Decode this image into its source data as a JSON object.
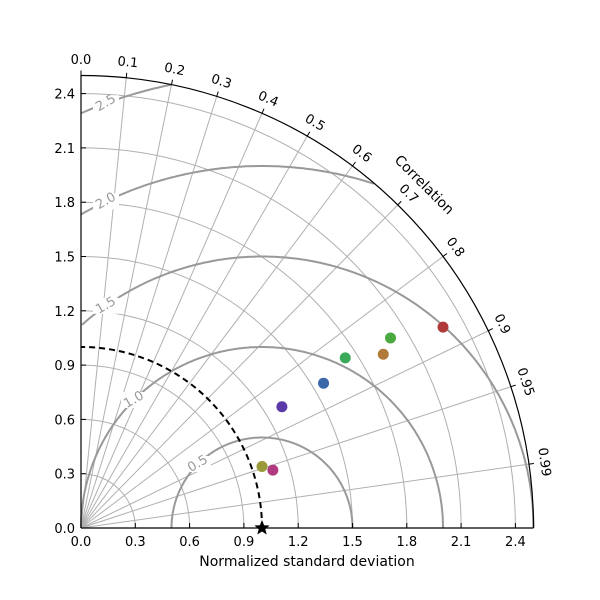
{
  "chart_data": {
    "type": "scatter",
    "title": "",
    "xlabel": "Normalized standard deviation",
    "ylabel": "",
    "angular_label": "Correlation",
    "std_ticks": [
      "0.0",
      "0.3",
      "0.6",
      "0.9",
      "1.2",
      "1.5",
      "1.8",
      "2.1",
      "2.4"
    ],
    "std_tick_values": [
      0.0,
      0.3,
      0.6,
      0.9,
      1.2,
      1.5,
      1.8,
      2.1,
      2.4
    ],
    "corr_ticks": [
      "0.0",
      "0.1",
      "0.2",
      "0.3",
      "0.4",
      "0.5",
      "0.6",
      "0.7",
      "0.8",
      "0.9",
      "0.95",
      "0.99"
    ],
    "corr_tick_values": [
      0.0,
      0.1,
      0.2,
      0.3,
      0.4,
      0.5,
      0.6,
      0.7,
      0.8,
      0.9,
      0.95,
      0.99
    ],
    "std_range": [
      0,
      2.5
    ],
    "rms_contours": [
      0.5,
      1.0,
      1.5,
      2.0,
      2.5
    ],
    "rms_labels": [
      "0.5",
      "1.0",
      "1.5",
      "2.0",
      "2.5"
    ],
    "reference": {
      "std": 1.0,
      "corr": 1.0
    },
    "grid": true,
    "points": [
      {
        "x": 1.0,
        "y": 0.34,
        "color": "#9a9a3a"
      },
      {
        "x": 1.06,
        "y": 0.32,
        "color": "#b03a80"
      },
      {
        "x": 1.11,
        "y": 0.67,
        "color": "#5a3aa8"
      },
      {
        "x": 1.34,
        "y": 0.8,
        "color": "#3a66aa"
      },
      {
        "x": 1.46,
        "y": 0.94,
        "color": "#3aaa5a"
      },
      {
        "x": 1.67,
        "y": 0.96,
        "color": "#b07a38"
      },
      {
        "x": 1.71,
        "y": 1.05,
        "color": "#4aaa40"
      },
      {
        "x": 2.0,
        "y": 1.11,
        "color": "#b03a3a"
      }
    ]
  }
}
